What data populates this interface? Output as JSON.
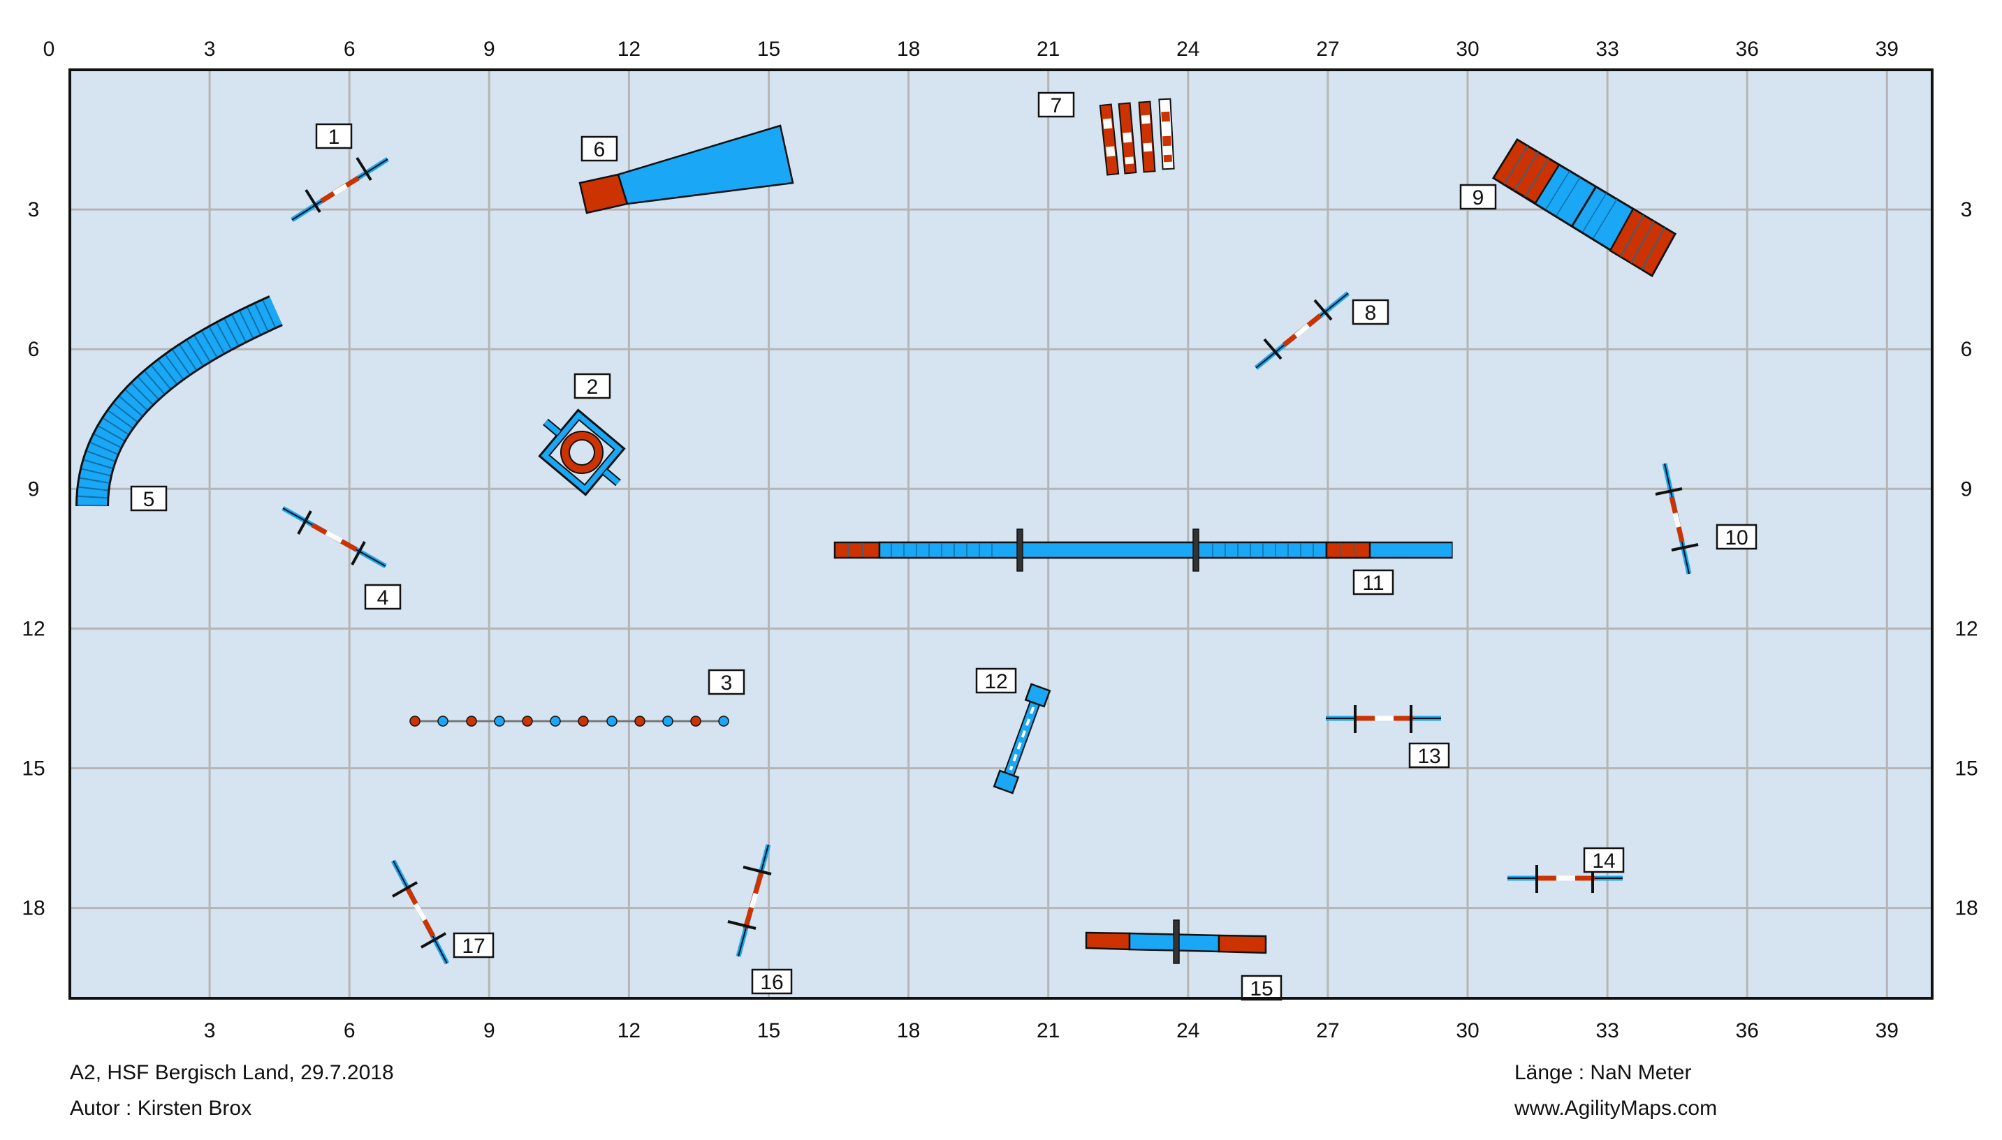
{
  "axis": {
    "top_ticks": [
      "0",
      "3",
      "6",
      "9",
      "12",
      "15",
      "18",
      "21",
      "24",
      "27",
      "30",
      "33",
      "36",
      "39"
    ],
    "bottom_ticks": [
      "3",
      "6",
      "9",
      "12",
      "15",
      "18",
      "21",
      "24",
      "27",
      "30",
      "33",
      "36",
      "39"
    ],
    "left_ticks": [
      "3",
      "6",
      "9",
      "12",
      "15",
      "18"
    ],
    "right_ticks": [
      "3",
      "6",
      "9",
      "12",
      "15",
      "18"
    ]
  },
  "obstacles": [
    {
      "number": "1",
      "type": "jump"
    },
    {
      "number": "2",
      "type": "tire"
    },
    {
      "number": "3",
      "type": "weave-poles"
    },
    {
      "number": "4",
      "type": "jump"
    },
    {
      "number": "5",
      "type": "tunnel"
    },
    {
      "number": "6",
      "type": "long-jump"
    },
    {
      "number": "7",
      "type": "wall"
    },
    {
      "number": "8",
      "type": "jump"
    },
    {
      "number": "9",
      "type": "a-frame"
    },
    {
      "number": "10",
      "type": "jump"
    },
    {
      "number": "11",
      "type": "dog-walk"
    },
    {
      "number": "12",
      "type": "table"
    },
    {
      "number": "13",
      "type": "jump"
    },
    {
      "number": "14",
      "type": "jump"
    },
    {
      "number": "15",
      "type": "seesaw"
    },
    {
      "number": "16",
      "type": "jump"
    },
    {
      "number": "17",
      "type": "jump"
    }
  ],
  "colors": {
    "field": "#d5e4f0",
    "grid": "#b5b5b5",
    "blue": "#1aa7f5",
    "red": "#cc3300",
    "border": "#111111"
  },
  "footer": {
    "title": "A2, HSF Bergisch Land, 29.7.2018",
    "author": "Autor : Kirsten Brox",
    "length": "Länge : NaN Meter",
    "website": "www.AgilityMaps.com"
  }
}
